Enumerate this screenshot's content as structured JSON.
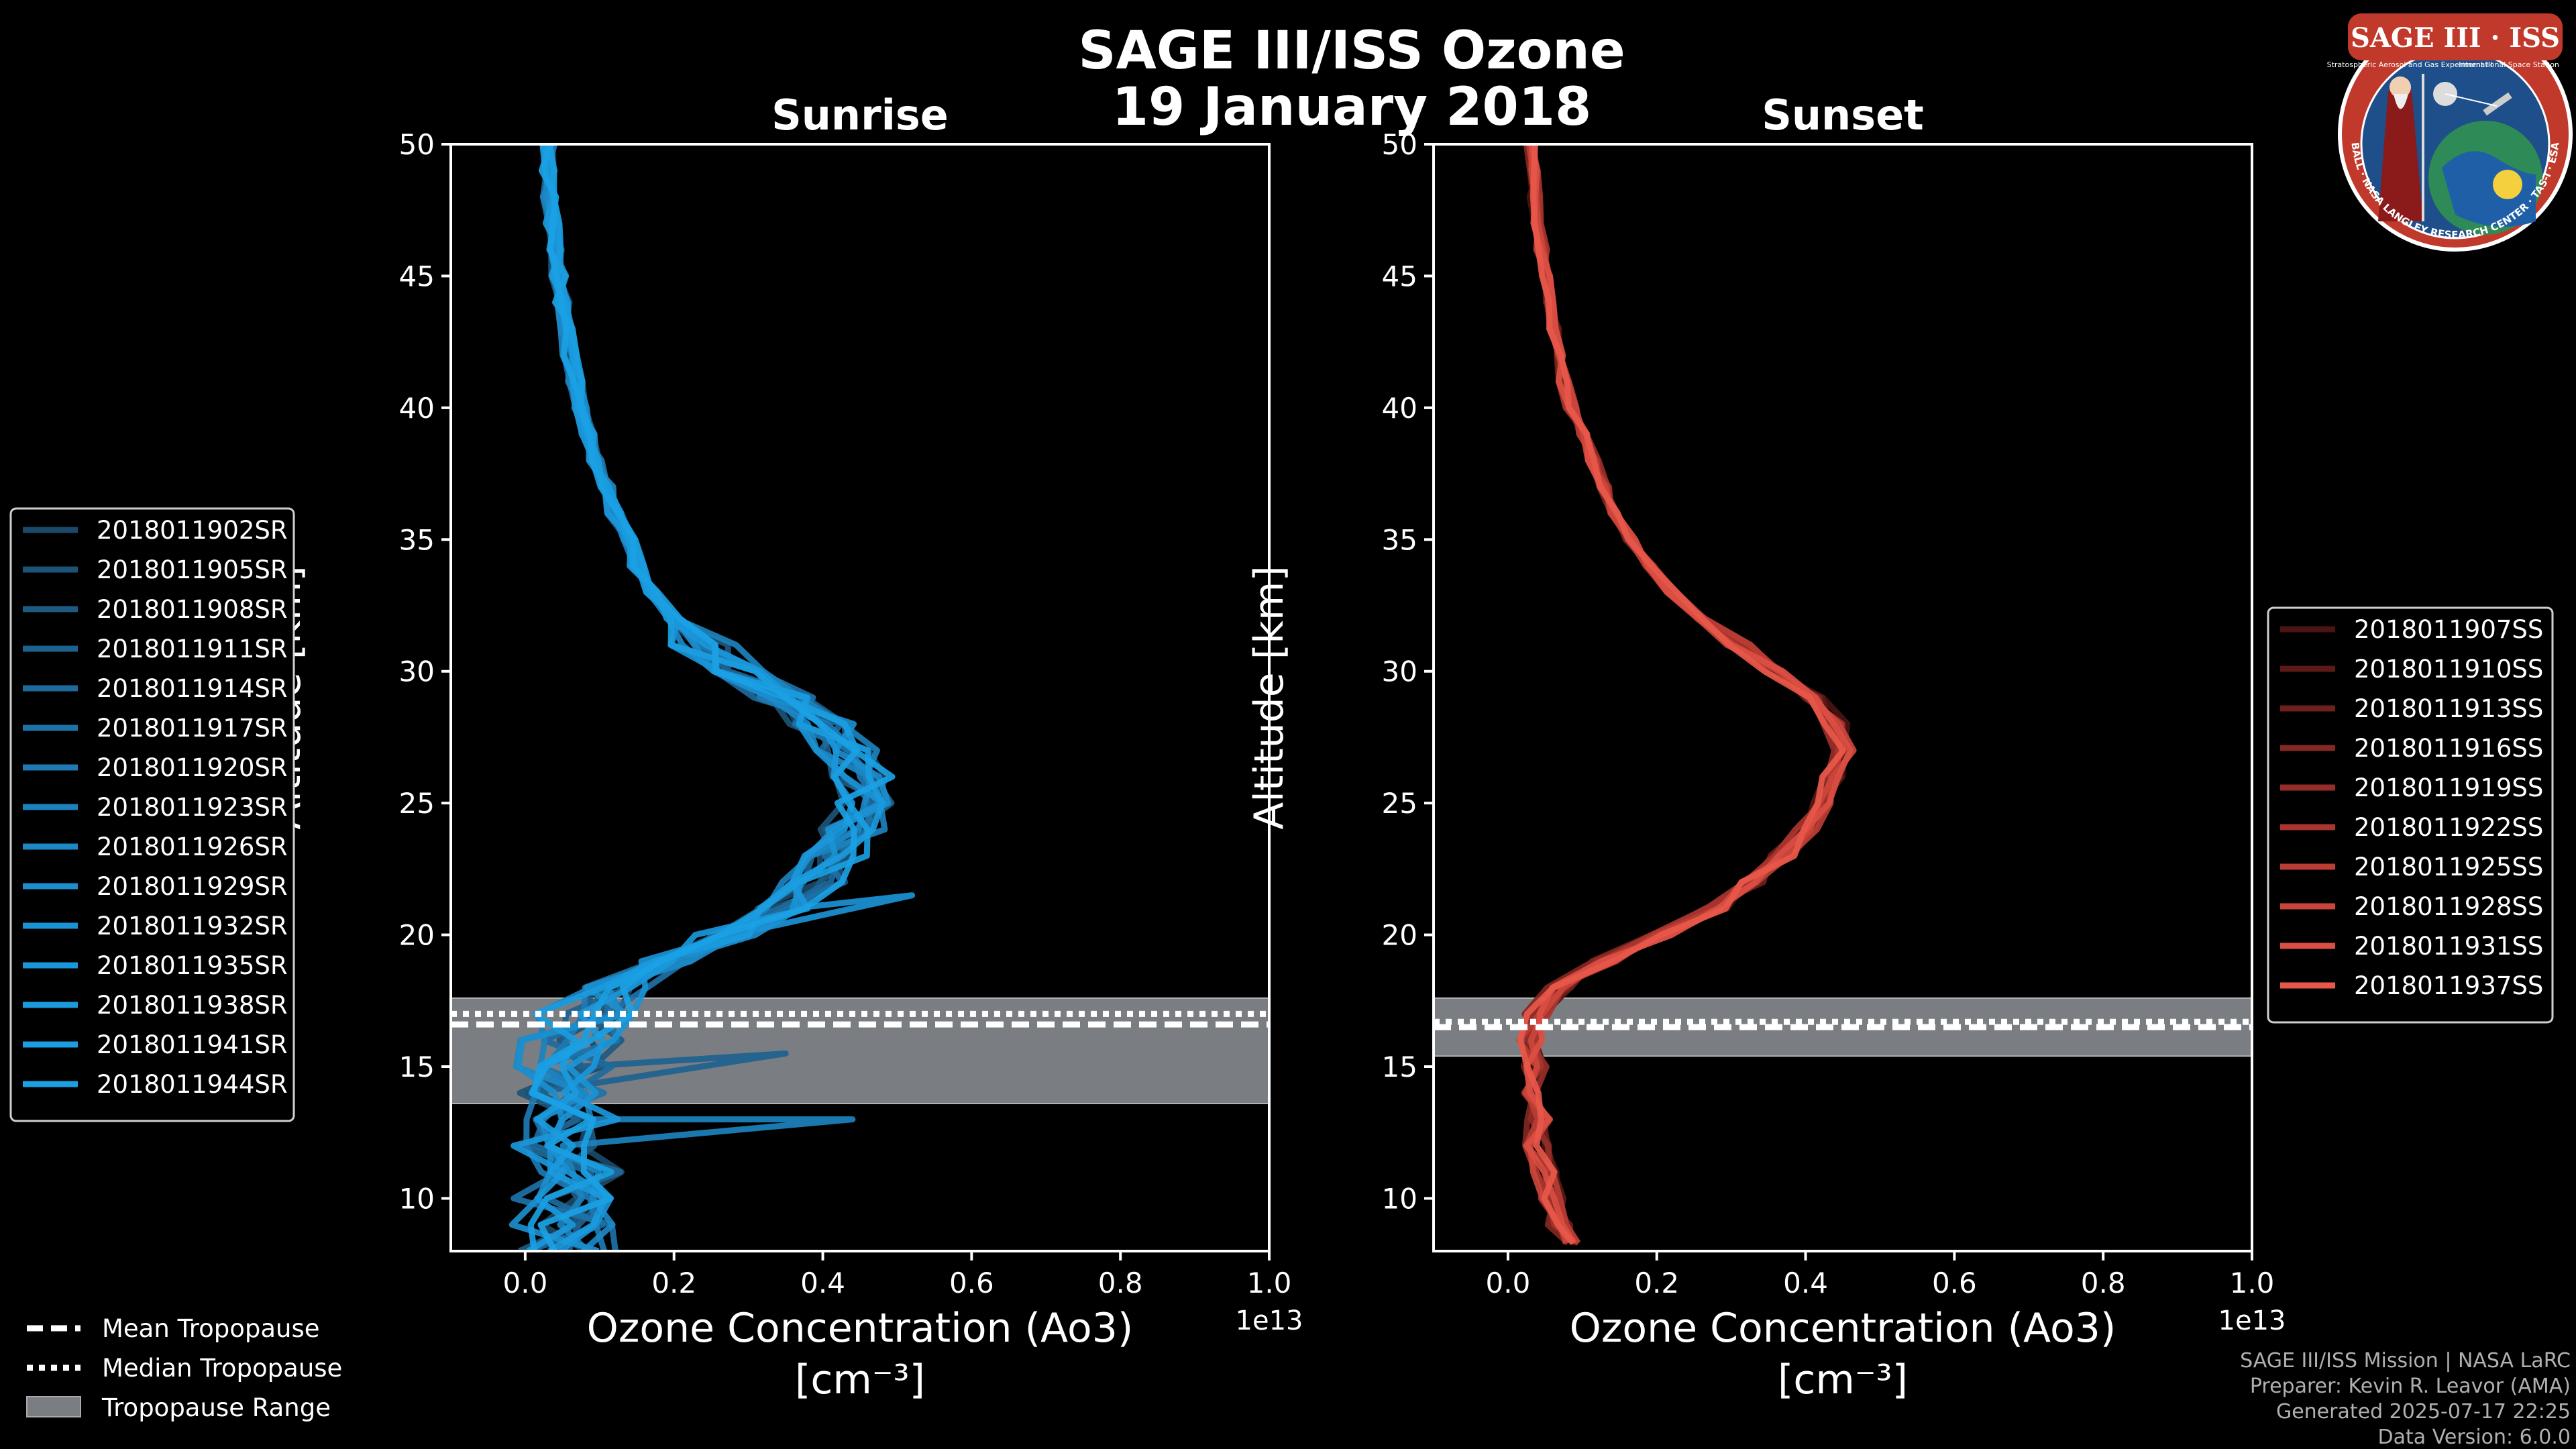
{
  "title_line1": "SAGE III/ISS Ozone",
  "title_line2": "19 January 2018",
  "logo": {
    "text": "SAGE III · ISS",
    "ring_text": "BALL · NASA LANGLEY RESEARCH CENTER · TAS-I · ESA",
    "subtitle_left": "Stratospheric Aerosol and Gas Experiment III",
    "subtitle_right": "International Space Station"
  },
  "colors": {
    "sunrise": "#1a9fe0",
    "sunset": "#e8584a",
    "tropopause": "#7a7d82",
    "background": "#000000"
  },
  "chart_data": [
    {
      "type": "line",
      "name": "sunrise",
      "title": "Sunrise",
      "xlabel_line1": "Ozone Concentration (Ao3)",
      "xlabel_line2": "[cm⁻³]",
      "ylabel": "Altitude [km]",
      "x_offset_label": "1e13",
      "xlim": [
        -0.1,
        1.0
      ],
      "ylim": [
        8,
        50
      ],
      "xticks": [
        0.0,
        0.2,
        0.4,
        0.6,
        0.8,
        1.0
      ],
      "xtick_labels": [
        "0.0",
        "0.2",
        "0.4",
        "0.6",
        "0.8",
        "1.0"
      ],
      "yticks": [
        10,
        15,
        20,
        25,
        30,
        35,
        40,
        45,
        50
      ],
      "ytick_labels": [
        "10",
        "15",
        "20",
        "25",
        "30",
        "35",
        "40",
        "45",
        "50"
      ],
      "tropopause": {
        "mean": 16.6,
        "median": 17.0,
        "range": [
          13.6,
          17.6
        ]
      },
      "altitudes": [
        8,
        9,
        10,
        11,
        12,
        13,
        14,
        15,
        16,
        17,
        18,
        19,
        20,
        21,
        22,
        23,
        24,
        25,
        26,
        27,
        28,
        29,
        30,
        31,
        32,
        33,
        34,
        35,
        36,
        37,
        38,
        39,
        40,
        41,
        42,
        43,
        44,
        45,
        46,
        47,
        48,
        49,
        50
      ],
      "mean_profile": [
        0.06,
        0.05,
        0.05,
        0.06,
        0.05,
        0.06,
        0.05,
        0.05,
        0.06,
        0.08,
        0.12,
        0.19,
        0.27,
        0.34,
        0.39,
        0.42,
        0.44,
        0.45,
        0.45,
        0.43,
        0.4,
        0.35,
        0.29,
        0.24,
        0.2,
        0.17,
        0.15,
        0.14,
        0.12,
        0.11,
        0.095,
        0.085,
        0.075,
        0.067,
        0.06,
        0.055,
        0.05,
        0.045,
        0.04,
        0.036,
        0.033,
        0.031,
        0.03
      ],
      "series": [
        {
          "name": "2018011902SR",
          "color": "#1b4a68"
        },
        {
          "name": "2018011905SR",
          "color": "#1c5275"
        },
        {
          "name": "2018011908SR",
          "color": "#1d5a82"
        },
        {
          "name": "2018011911SR",
          "color": "#1d628f"
        },
        {
          "name": "2018011914SR",
          "color": "#1d6a9c"
        },
        {
          "name": "2018011917SR",
          "color": "#1d72a8"
        },
        {
          "name": "2018011920SR",
          "color": "#1d7ab3"
        },
        {
          "name": "2018011923SR",
          "color": "#1c82bd"
        },
        {
          "name": "2018011926SR",
          "color": "#1c88c6"
        },
        {
          "name": "2018011929SR",
          "color": "#1b8ece"
        },
        {
          "name": "2018011932SR",
          "color": "#1a93d5"
        },
        {
          "name": "2018011935SR",
          "color": "#1a97da"
        },
        {
          "name": "2018011938SR",
          "color": "#1a9bde"
        },
        {
          "name": "2018011941SR",
          "color": "#1a9ee1"
        },
        {
          "name": "2018011944SR",
          "color": "#1aa1e4"
        }
      ]
    },
    {
      "type": "line",
      "name": "sunset",
      "title": "Sunset",
      "xlabel_line1": "Ozone Concentration (Ao3)",
      "xlabel_line2": "[cm⁻³]",
      "ylabel": "Altitude [km]",
      "x_offset_label": "1e13",
      "xlim": [
        -0.1,
        1.0
      ],
      "ylim": [
        8,
        50
      ],
      "xticks": [
        0.0,
        0.2,
        0.4,
        0.6,
        0.8,
        1.0
      ],
      "xtick_labels": [
        "0.0",
        "0.2",
        "0.4",
        "0.6",
        "0.8",
        "1.0"
      ],
      "yticks": [
        10,
        15,
        20,
        25,
        30,
        35,
        40,
        45,
        50
      ],
      "ytick_labels": [
        "10",
        "15",
        "20",
        "25",
        "30",
        "35",
        "40",
        "45",
        "50"
      ],
      "tropopause": {
        "mean": 16.5,
        "median": 16.7,
        "range": [
          15.4,
          17.6
        ]
      },
      "altitudes": [
        8.3,
        9,
        10,
        11,
        12,
        13,
        14,
        15,
        16,
        17,
        18,
        19,
        20,
        21,
        22,
        23,
        24,
        25,
        26,
        27,
        28,
        29,
        30,
        31,
        32,
        33,
        34,
        35,
        36,
        37,
        38,
        39,
        40,
        41,
        42,
        43,
        44,
        45,
        46,
        47,
        48,
        49,
        50
      ],
      "mean_profile": [
        0.08,
        0.07,
        0.06,
        0.05,
        0.04,
        0.04,
        0.035,
        0.035,
        0.03,
        0.04,
        0.07,
        0.13,
        0.21,
        0.28,
        0.33,
        0.37,
        0.4,
        0.42,
        0.44,
        0.45,
        0.44,
        0.41,
        0.36,
        0.31,
        0.26,
        0.22,
        0.19,
        0.165,
        0.145,
        0.13,
        0.115,
        0.1,
        0.085,
        0.075,
        0.068,
        0.062,
        0.056,
        0.05,
        0.045,
        0.04,
        0.036,
        0.033,
        0.03
      ],
      "series": [
        {
          "name": "2018011907SS",
          "color": "#4a1412"
        },
        {
          "name": "2018011910SS",
          "color": "#5c1a17"
        },
        {
          "name": "2018011913SS",
          "color": "#6e201c"
        },
        {
          "name": "2018011916SS",
          "color": "#822722"
        },
        {
          "name": "2018011919SS",
          "color": "#952e28"
        },
        {
          "name": "2018011922SS",
          "color": "#a8352e"
        },
        {
          "name": "2018011925SS",
          "color": "#bb3d34"
        },
        {
          "name": "2018011928SS",
          "color": "#cc453b"
        },
        {
          "name": "2018011931SS",
          "color": "#db4e43"
        },
        {
          "name": "2018011937SS",
          "color": "#e8584a"
        }
      ]
    }
  ],
  "tropopause_legend": {
    "mean_label": "Mean Tropopause",
    "median_label": "Median Tropopause",
    "range_label": "Tropopause Range"
  },
  "footer": {
    "line1": "SAGE III/ISS Mission | NASA LaRC",
    "line2": "Preparer: Kevin R. Leavor (AMA)",
    "line3": "Generated 2025-07-17 22:25",
    "line4": "Data Version: 6.0.0"
  }
}
